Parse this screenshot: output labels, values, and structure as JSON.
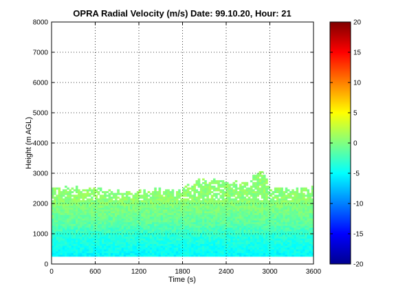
{
  "chart_data": {
    "type": "heatmap",
    "title": "OPRA Radial Velocity (m/s)  Date: 99.10.20, Hour: 21",
    "xlabel": "Time (s)",
    "ylabel": "Height (m AGL)",
    "xlim": [
      0,
      3600
    ],
    "ylim": [
      0,
      8000
    ],
    "xticks": [
      0,
      600,
      1200,
      1800,
      2400,
      3000,
      3600
    ],
    "yticks": [
      0,
      1000,
      2000,
      3000,
      4000,
      5000,
      6000,
      7000,
      8000
    ],
    "grid": true,
    "colormap": "jet",
    "colorbar": {
      "range": [
        -20,
        20
      ],
      "ticks": [
        20,
        15,
        10,
        5,
        0,
        -5,
        -10,
        -15,
        -20
      ],
      "colors": [
        "#00008f",
        "#0000ff",
        "#0080ff",
        "#00ffff",
        "#80ff80",
        "#ffff00",
        "#ff8000",
        "#ff0000",
        "#800000"
      ]
    },
    "velocity_profile": {
      "heights_m": [
        300,
        500,
        700,
        900,
        1100,
        1300,
        1500,
        1700,
        1900,
        2100,
        2300,
        2500
      ],
      "values_ms": [
        -5,
        -4.5,
        -4,
        -3.5,
        -2.5,
        -1.5,
        -1,
        -0.5,
        0,
        0.5,
        0.5,
        0.5
      ]
    },
    "echo_top": {
      "time_s": [
        0,
        120,
        300,
        600,
        900,
        1200,
        1500,
        1800,
        2050,
        2400,
        2700,
        2880,
        3000,
        3300,
        3600
      ],
      "height_m": [
        2500,
        2500,
        2500,
        2450,
        2350,
        2400,
        2400,
        2450,
        2800,
        2700,
        2600,
        3150,
        2500,
        2450,
        2500
      ]
    }
  }
}
